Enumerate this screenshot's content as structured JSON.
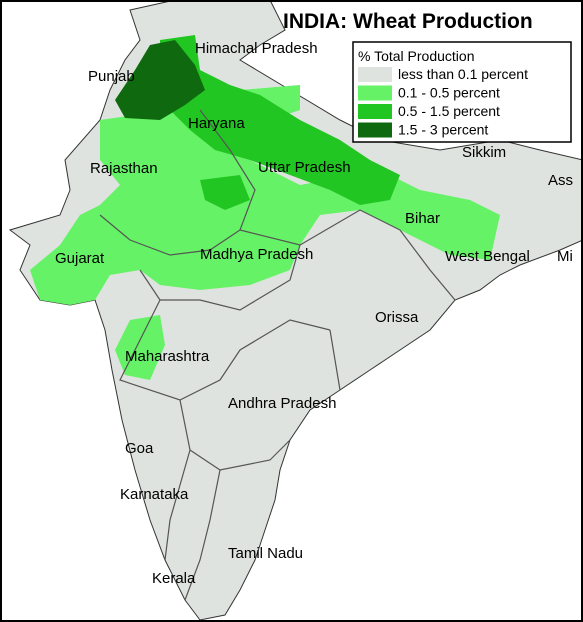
{
  "title": "INDIA: Wheat Production",
  "legend": {
    "title": "% Total Production",
    "items": [
      {
        "label": "less than 0.1 percent",
        "color": "#dfe3df"
      },
      {
        "label": "0.1 - 0.5 percent",
        "color": "#66f266"
      },
      {
        "label": "0.5 - 1.5 percent",
        "color": "#22c622"
      },
      {
        "label": "1.5 - 3 percent",
        "color": "#0f6a0f"
      }
    ]
  },
  "labels": [
    "Himachal Pradesh",
    "Punjab",
    "Haryana",
    "Rajasthan",
    "Uttar Pradesh",
    "Sikkim",
    "Ass",
    "Bihar",
    "Gujarat",
    "Madhya Pradesh",
    "West Bengal",
    "Mi",
    "Orissa",
    "Maharashtra",
    "Andhra Pradesh",
    "Goa",
    "Karnataka",
    "Tamil Nadu",
    "Kerala"
  ]
}
